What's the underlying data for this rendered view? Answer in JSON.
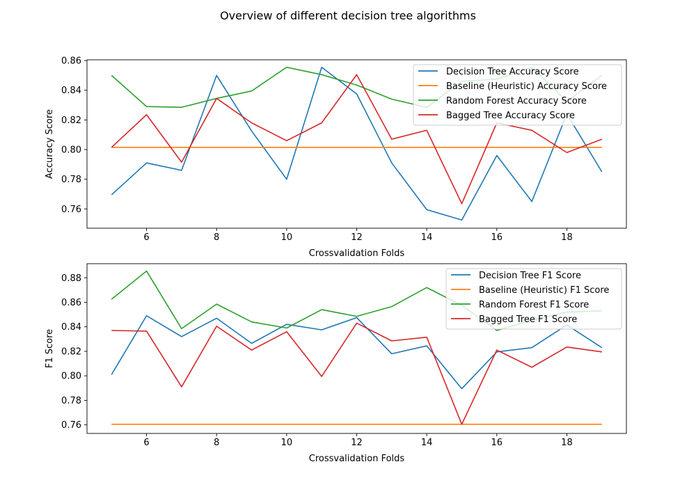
{
  "figure_title": "Overview of different decision tree algorithms",
  "colors": {
    "decision_tree": "#1f77b4",
    "baseline": "#ff7f0e",
    "random_forest": "#2ca02c",
    "bagged_tree": "#d62728"
  },
  "chart_data": [
    {
      "type": "line",
      "xlabel": "Crossvalidation Folds",
      "ylabel": "Accuracy Score",
      "x": [
        5,
        6,
        7,
        8,
        9,
        10,
        11,
        12,
        13,
        14,
        15,
        16,
        17,
        18,
        19
      ],
      "xlim": [
        4.3,
        19.7
      ],
      "ylim": [
        0.747,
        0.8605
      ],
      "xticks": [
        6,
        8,
        10,
        12,
        14,
        16,
        18
      ],
      "yticks": [
        0.76,
        0.78,
        0.8,
        0.82,
        0.84,
        0.86
      ],
      "ytick_labels": [
        "0.76",
        "0.78",
        "0.80",
        "0.82",
        "0.84",
        "0.86"
      ],
      "grid": false,
      "legend_position": "top-right",
      "series": [
        {
          "name": "Decision Tree Accuracy Score",
          "color_key": "decision_tree",
          "values": [
            0.7695,
            0.791,
            0.786,
            0.85,
            0.8125,
            0.78,
            0.8555,
            0.8375,
            0.791,
            0.7595,
            0.7525,
            0.796,
            0.765,
            0.824,
            0.785
          ]
        },
        {
          "name": "Baseline (Heuristic) Accuracy Score",
          "color_key": "baseline",
          "values": [
            0.8015,
            0.8015,
            0.8015,
            0.8015,
            0.8015,
            0.8015,
            0.8015,
            0.8015,
            0.8015,
            0.8015,
            0.8015,
            0.8015,
            0.8015,
            0.8015,
            0.8015
          ]
        },
        {
          "name": "Random Forest Accuracy Score",
          "color_key": "random_forest",
          "values": [
            0.85,
            0.829,
            0.8285,
            0.8345,
            0.8395,
            0.8555,
            0.8505,
            0.8435,
            0.834,
            0.8285,
            0.846,
            0.8475,
            0.8555,
            0.8325,
            0.85
          ]
        },
        {
          "name": "Bagged Tree Accuracy Score",
          "color_key": "bagged_tree",
          "values": [
            0.8015,
            0.8235,
            0.7915,
            0.8345,
            0.818,
            0.806,
            0.818,
            0.8505,
            0.807,
            0.813,
            0.7635,
            0.818,
            0.813,
            0.798,
            0.807
          ]
        }
      ]
    },
    {
      "type": "line",
      "xlabel": "Crossvalidation Folds",
      "ylabel": "F1 Score",
      "x": [
        5,
        6,
        7,
        8,
        9,
        10,
        11,
        12,
        13,
        14,
        15,
        16,
        17,
        18,
        19
      ],
      "xlim": [
        4.3,
        19.7
      ],
      "ylim": [
        0.753,
        0.8915
      ],
      "xticks": [
        6,
        8,
        10,
        12,
        14,
        16,
        18
      ],
      "yticks": [
        0.76,
        0.78,
        0.8,
        0.82,
        0.84,
        0.86,
        0.88
      ],
      "ytick_labels": [
        "0.76",
        "0.78",
        "0.80",
        "0.82",
        "0.84",
        "0.86",
        "0.88"
      ],
      "grid": false,
      "legend_position": "top-right",
      "series": [
        {
          "name": "Decision Tree F1 Score",
          "color_key": "decision_tree",
          "values": [
            0.801,
            0.849,
            0.832,
            0.847,
            0.8265,
            0.842,
            0.8375,
            0.8475,
            0.818,
            0.8245,
            0.7895,
            0.8195,
            0.823,
            0.8415,
            0.823
          ]
        },
        {
          "name": "Baseline (Heuristic) F1 Score",
          "color_key": "baseline",
          "values": [
            0.7605,
            0.7605,
            0.7605,
            0.7605,
            0.7605,
            0.7605,
            0.7605,
            0.7605,
            0.7605,
            0.7605,
            0.7605,
            0.7605,
            0.7605,
            0.7605,
            0.7605
          ]
        },
        {
          "name": "Random Forest F1 Score",
          "color_key": "random_forest",
          "values": [
            0.8625,
            0.8855,
            0.8385,
            0.8585,
            0.844,
            0.839,
            0.854,
            0.8485,
            0.8565,
            0.872,
            0.8575,
            0.837,
            0.8455,
            0.852,
            0.853
          ]
        },
        {
          "name": "Bagged Tree F1 Score",
          "color_key": "bagged_tree",
          "values": [
            0.837,
            0.8365,
            0.791,
            0.8405,
            0.821,
            0.836,
            0.7995,
            0.843,
            0.8285,
            0.8315,
            0.7605,
            0.821,
            0.807,
            0.8235,
            0.8195
          ]
        }
      ]
    }
  ]
}
